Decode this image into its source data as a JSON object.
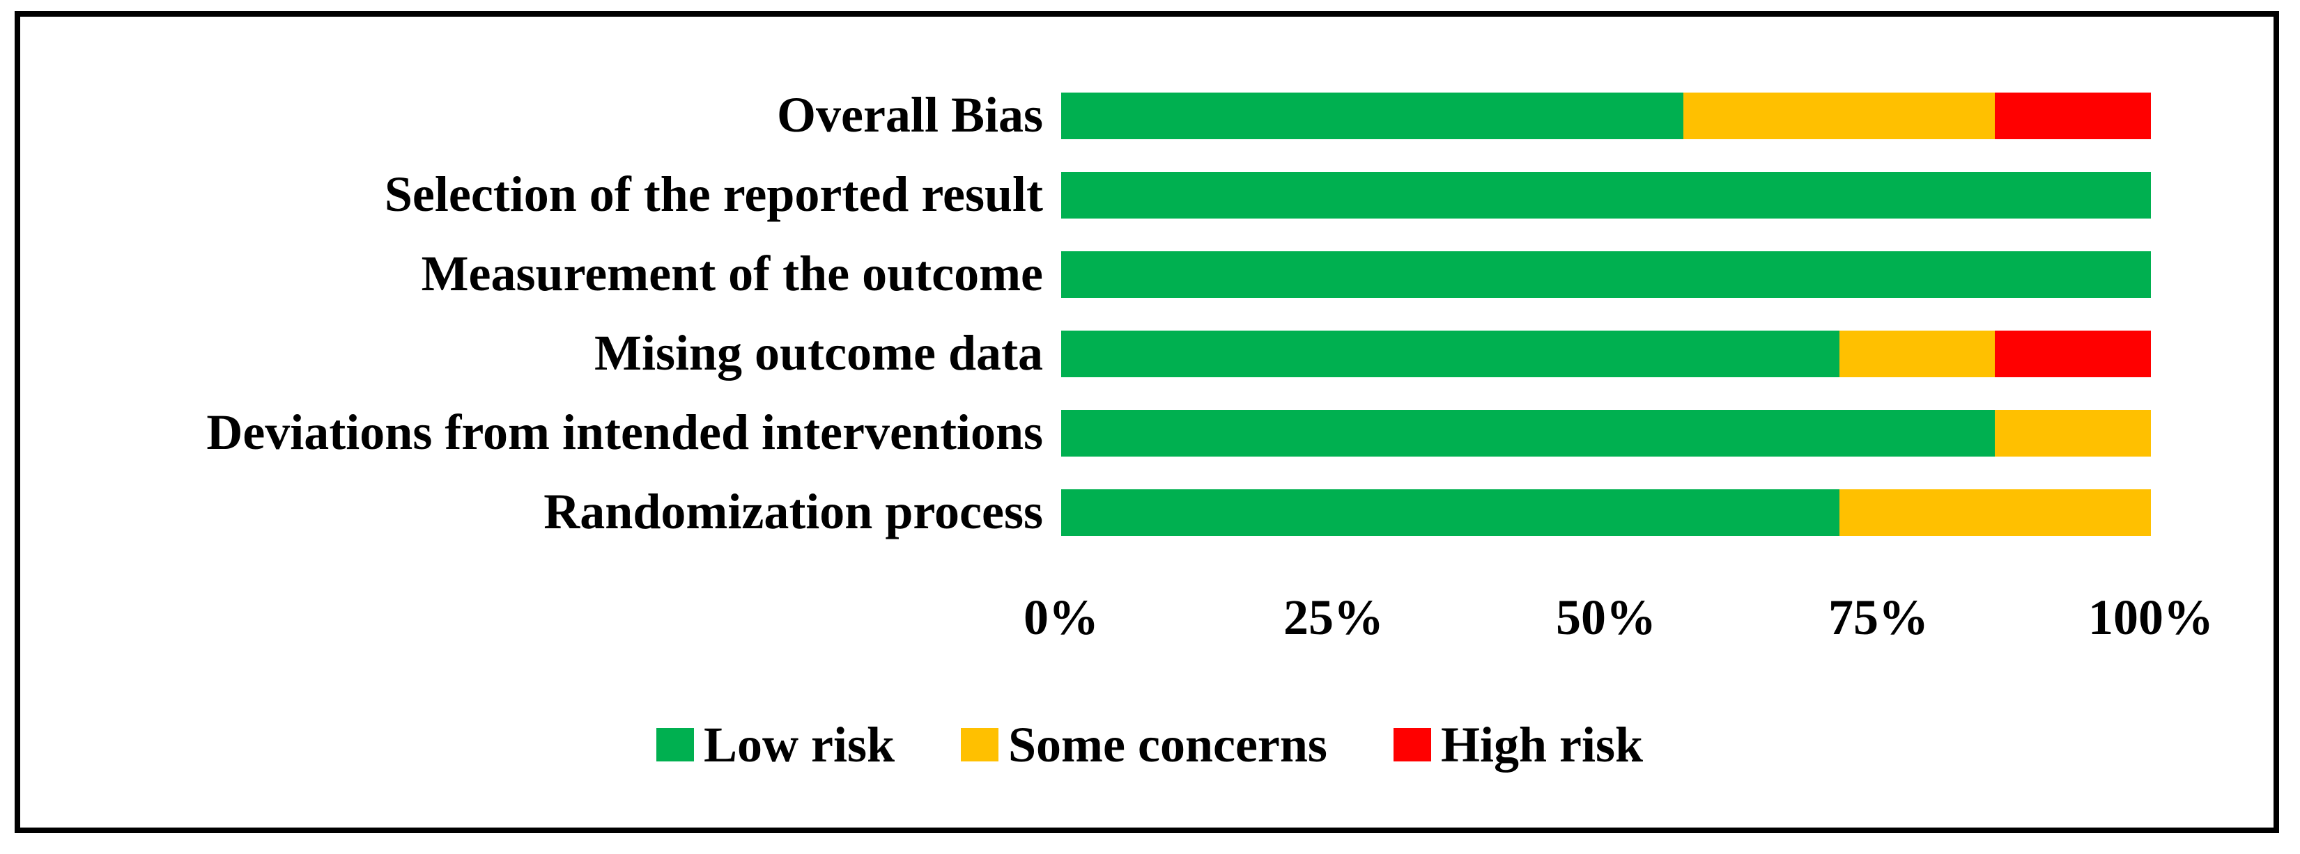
{
  "figure": {
    "kind": "risk-of-bias-summary-figure",
    "background": "#FFFFFF",
    "border_color": "#000000",
    "text_color": "#000000"
  },
  "chart_data": {
    "type": "bar",
    "orientation": "horizontal",
    "stacked": true,
    "unit": "percent",
    "grid": false,
    "categories": [
      "Overall Bias",
      "Selection of the reported result",
      "Measurement of the outcome",
      "Mising outcome data",
      "Deviations from intended interventions",
      "Randomization process"
    ],
    "series": [
      {
        "name": "Low risk",
        "color": "#00B050",
        "values": [
          57.1,
          100,
          100,
          71.4,
          85.7,
          71.4
        ]
      },
      {
        "name": "Some concerns",
        "color": "#FFC000",
        "values": [
          28.6,
          0,
          0,
          14.3,
          14.3,
          28.6
        ]
      },
      {
        "name": "High risk",
        "color": "#FF0000",
        "values": [
          14.3,
          0,
          0,
          14.3,
          0,
          0
        ]
      }
    ],
    "x_axis": {
      "range": [
        0,
        100
      ],
      "tick_labels": [
        "0%",
        "25%",
        "50%",
        "75%",
        "100%"
      ]
    },
    "legend": {
      "position": "bottom",
      "entries": [
        "Low risk",
        "Some concerns",
        "High risk"
      ]
    }
  }
}
